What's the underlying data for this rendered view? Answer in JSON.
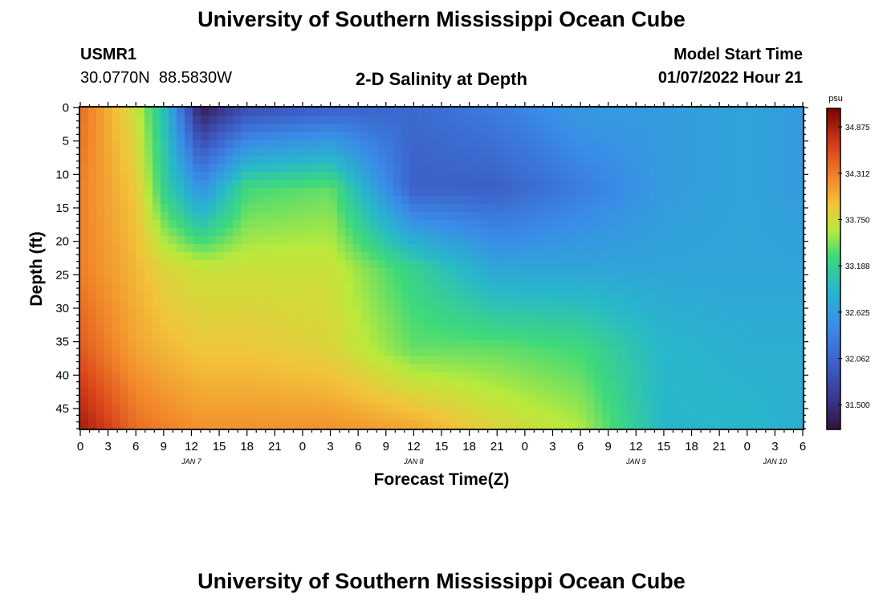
{
  "header": {
    "title": "University of Southern Mississippi Ocean Cube",
    "station_id": "USMR1",
    "station_coords": "30.0770N  88.5830W",
    "plot_title": "2-D Salinity at Depth",
    "model_start_label": "Model Start Time",
    "model_start_value": "01/07/2022 Hour 21"
  },
  "footer": {
    "title": "University of Southern Mississippi Ocean Cube"
  },
  "chart_data": {
    "type": "heatmap",
    "title": "2-D Salinity at Depth",
    "xlabel": "Forecast Time(Z)",
    "ylabel": "Depth (ft)",
    "x_tick_labels": [
      "0",
      "3",
      "6",
      "9",
      "12",
      "15",
      "18",
      "21",
      "0",
      "3",
      "6",
      "9",
      "12",
      "15",
      "18",
      "21",
      "0",
      "3",
      "6",
      "9",
      "12",
      "15",
      "18",
      "21",
      "0",
      "3",
      "6"
    ],
    "x_day_labels": [
      {
        "label": "JAN 7",
        "tick_index": 4
      },
      {
        "label": "JAN 8",
        "tick_index": 12
      },
      {
        "label": "JAN 9",
        "tick_index": 20
      },
      {
        "label": "JAN 10",
        "tick_index": 25
      }
    ],
    "xlim_hours": [
      0,
      78
    ],
    "y_tick_labels": [
      "0",
      "5",
      "10",
      "15",
      "20",
      "25",
      "30",
      "35",
      "40",
      "45"
    ],
    "ylim_ft": [
      0,
      48
    ],
    "colorbar": {
      "unit": "psu",
      "min": 31.2,
      "max": 35.1,
      "ticks": [
        "34.875",
        "34.312",
        "33.750",
        "33.188",
        "32.625",
        "32.062",
        "31.500"
      ]
    },
    "salinity_grid": {
      "depth_ft": [
        0,
        12,
        24,
        36,
        48
      ],
      "hours": [
        0,
        6,
        9,
        13,
        18,
        27,
        36,
        45,
        54,
        63,
        72,
        78
      ],
      "values": [
        [
          34.4,
          33.7,
          33.0,
          31.3,
          31.8,
          32.0,
          32.1,
          32.3,
          32.6,
          32.6,
          32.7,
          32.6
        ],
        [
          34.3,
          33.9,
          33.2,
          32.5,
          33.3,
          33.4,
          32.0,
          32.0,
          32.3,
          32.6,
          32.7,
          32.6
        ],
        [
          34.3,
          34.0,
          33.8,
          33.7,
          33.7,
          33.7,
          33.2,
          32.7,
          32.7,
          32.7,
          32.7,
          32.7
        ],
        [
          34.5,
          34.1,
          34.0,
          33.9,
          33.9,
          33.8,
          33.4,
          33.4,
          33.3,
          32.9,
          32.8,
          32.8
        ],
        [
          34.9,
          34.4,
          34.3,
          34.2,
          34.2,
          34.2,
          34.1,
          33.8,
          33.6,
          32.9,
          32.9,
          32.8
        ]
      ]
    }
  }
}
